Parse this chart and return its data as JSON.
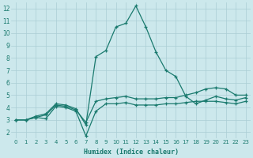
{
  "xlabel": "Humidex (Indice chaleur)",
  "background_color": "#cce8ec",
  "grid_color": "#aacdd4",
  "line_color": "#1a7a6e",
  "xlim": [
    -0.5,
    23.5
  ],
  "ylim": [
    1.5,
    12.5
  ],
  "xticks": [
    0,
    1,
    2,
    3,
    4,
    5,
    6,
    7,
    8,
    9,
    10,
    11,
    12,
    13,
    14,
    15,
    16,
    17,
    18,
    19,
    20,
    21,
    22,
    23
  ],
  "yticks": [
    2,
    3,
    4,
    5,
    6,
    7,
    8,
    9,
    10,
    11,
    12
  ],
  "series": [
    [
      3.0,
      3.0,
      3.2,
      3.1,
      4.1,
      4.0,
      3.7,
      1.7,
      3.7,
      4.3,
      4.3,
      4.4,
      4.2,
      4.2,
      4.2,
      4.3,
      4.3,
      4.4,
      4.5,
      4.5,
      4.5,
      4.4,
      4.3,
      4.5
    ],
    [
      3.0,
      3.0,
      3.2,
      3.4,
      4.2,
      4.1,
      3.8,
      2.8,
      4.5,
      4.7,
      4.8,
      4.9,
      4.7,
      4.7,
      4.7,
      4.8,
      4.8,
      5.0,
      5.2,
      5.5,
      5.6,
      5.5,
      5.0,
      5.0
    ],
    [
      3.0,
      3.0,
      3.3,
      3.5,
      4.3,
      4.2,
      3.9,
      2.6,
      8.1,
      8.6,
      10.5,
      10.8,
      12.2,
      10.5,
      8.5,
      7.0,
      6.5,
      4.9,
      4.3,
      4.6,
      4.9,
      4.7,
      4.6,
      4.8
    ]
  ]
}
